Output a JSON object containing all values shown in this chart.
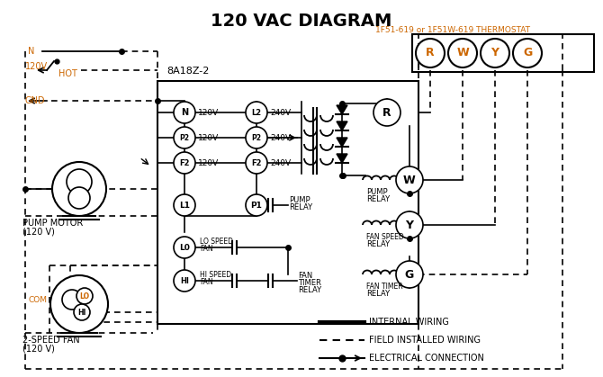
{
  "title": "120 VAC DIAGRAM",
  "title_fontsize": 14,
  "bg_color": "#ffffff",
  "line_color": "#000000",
  "orange_color": "#cc6600",
  "thermostat_label": "1F51-619 or 1F51W-619 THERMOSTAT",
  "box_label": "8A18Z-2",
  "thermostat_terminals": [
    "R",
    "W",
    "Y",
    "G"
  ],
  "pump_motor_label1": "PUMP MOTOR",
  "pump_motor_label2": "(120 V)",
  "fan_label1": "2-SPEED FAN",
  "fan_label2": "(120 V)",
  "legend_items": [
    "INTERNAL WIRING",
    "FIELD INSTALLED WIRING",
    "ELECTRICAL CONNECTION"
  ],
  "com_label": "COM",
  "lo_label": "LO",
  "hi_label": "HI",
  "figw": 6.7,
  "figh": 4.19,
  "dpi": 100
}
